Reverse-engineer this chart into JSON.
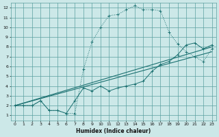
{
  "xlabel": "Humidex (Indice chaleur)",
  "bg_color": "#cce8e8",
  "grid_color": "#5aa0a0",
  "line_color": "#1a7070",
  "xlim": [
    -0.5,
    23.5
  ],
  "ylim": [
    0.5,
    12.5
  ],
  "xticks": [
    0,
    1,
    2,
    3,
    4,
    5,
    6,
    7,
    8,
    9,
    10,
    11,
    12,
    13,
    14,
    15,
    16,
    17,
    18,
    19,
    20,
    21,
    22,
    23
  ],
  "yticks": [
    1,
    2,
    3,
    4,
    5,
    6,
    7,
    8,
    9,
    10,
    11,
    12
  ],
  "curve1_x": [
    0,
    1,
    2,
    3,
    4,
    5,
    6,
    7,
    8,
    9,
    10,
    11,
    12,
    13,
    14,
    15,
    16,
    17,
    18,
    19,
    20,
    21,
    22,
    23
  ],
  "curve1_y": [
    2,
    2,
    2,
    2.5,
    1.5,
    1.5,
    1.2,
    1.2,
    5.7,
    8.5,
    10,
    11.2,
    11.3,
    11.8,
    12.2,
    11.8,
    11.8,
    11.7,
    9.5,
    8.3,
    7.5,
    7.0,
    6.5,
    7.8
  ],
  "curve2_x": [
    0,
    1,
    2,
    3,
    4,
    5,
    6,
    7,
    8,
    9,
    10,
    11,
    12,
    13,
    14,
    15,
    16,
    17,
    18,
    19,
    20,
    21,
    22,
    23
  ],
  "curve2_y": [
    2,
    2,
    2,
    2.5,
    1.5,
    1.5,
    1.2,
    2.5,
    3.8,
    3.5,
    4.0,
    3.5,
    3.8,
    4.0,
    4.2,
    4.5,
    5.5,
    6.2,
    6.5,
    7.2,
    8.2,
    8.4,
    7.8,
    8.2
  ],
  "line1_x": [
    0,
    23
  ],
  "line1_y": [
    2.0,
    7.5
  ],
  "line2_x": [
    0,
    23
  ],
  "line2_y": [
    2.0,
    8.0
  ]
}
